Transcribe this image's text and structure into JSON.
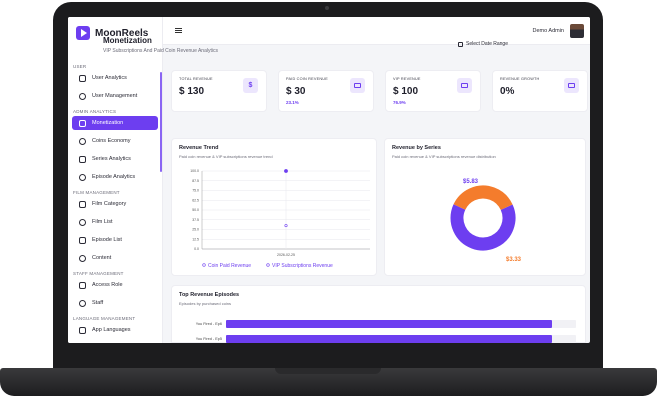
{
  "app": {
    "name": "MoonReels"
  },
  "sidebar": {
    "sections": [
      {
        "label": "USER",
        "items": [
          {
            "label": "User Analytics",
            "icon": "user-analytics-icon"
          },
          {
            "label": "User Management",
            "icon": "user-management-icon"
          }
        ]
      },
      {
        "label": "ADMIN ANALYTICS",
        "items": [
          {
            "label": "Monetization",
            "icon": "monetization-icon",
            "active": true
          },
          {
            "label": "Coins Economy",
            "icon": "coins-icon"
          },
          {
            "label": "Series Analytics",
            "icon": "series-icon"
          },
          {
            "label": "Episode Analytics",
            "icon": "episode-icon"
          }
        ]
      },
      {
        "label": "FILM MANAGEMENT",
        "items": [
          {
            "label": "Film Category",
            "icon": "film-category-icon"
          },
          {
            "label": "Film List",
            "icon": "film-list-icon"
          },
          {
            "label": "Episode List",
            "icon": "episode-list-icon"
          },
          {
            "label": "Content",
            "icon": "content-icon"
          }
        ]
      },
      {
        "label": "STAFF MANAGEMENT",
        "items": [
          {
            "label": "Access Role",
            "icon": "access-role-icon"
          },
          {
            "label": "Staff",
            "icon": "staff-icon"
          }
        ]
      },
      {
        "label": "LANGUAGE MANAGEMENT",
        "items": [
          {
            "label": "App Languages",
            "icon": "language-icon"
          }
        ]
      }
    ]
  },
  "header": {
    "user_name": "Demo Admin"
  },
  "page": {
    "title": "Monetization",
    "subtitle": "VIP Subscriptions And Paid Coin Revenue Analytics",
    "date_range_label": "Select Date Range"
  },
  "stats": [
    {
      "label": "TOTAL REVENUE",
      "value": "$ 130",
      "change": "",
      "icon": "dollar-icon",
      "glyph": "$"
    },
    {
      "label": "PAID COIN REVENUE",
      "value": "$ 30",
      "change": "23.1%",
      "icon": "coins-icon",
      "glyph": ""
    },
    {
      "label": "VIP REVENUE",
      "value": "$ 100",
      "change": "76.9%",
      "icon": "card-icon",
      "glyph": ""
    },
    {
      "label": "REVENUE GROWTH",
      "value": "0%",
      "change": "",
      "icon": "trend-up-icon",
      "glyph": ""
    }
  ],
  "trend_panel": {
    "title": "Revenue Trend",
    "subtitle": "Paid coin revenue & VIP subscriptions revenue trend"
  },
  "series_panel": {
    "title": "Revenue by Series",
    "subtitle": "Paid coin revenue & VIP subscriptions revenue distribution"
  },
  "episodes_panel": {
    "title": "Top Revenue Episodes",
    "subtitle": "Episodes by purchased coins"
  },
  "chart_data": [
    {
      "type": "line",
      "x": [
        "2026-02-25"
      ],
      "series": [
        {
          "name": "Coin Paid Revenue",
          "values": [
            30
          ]
        },
        {
          "name": "VIP Subscriptions Revenue",
          "values": [
            100
          ]
        }
      ],
      "yticks": [
        "0.0",
        "12.5",
        "25.0",
        "37.5",
        "50.0",
        "62.5",
        "75.0",
        "87.5",
        "100.0"
      ],
      "ylim": [
        0,
        100
      ],
      "grid": true,
      "legend": "bottom",
      "colors": [
        "#6d3ef0",
        "#6d3ef0"
      ]
    },
    {
      "type": "pie",
      "donut": true,
      "slices": [
        {
          "label": "$5.83",
          "value": 5.83,
          "color": "#6d3ef0"
        },
        {
          "label": "$3.33",
          "value": 3.33,
          "color": "#f47c2c"
        }
      ]
    },
    {
      "type": "bar",
      "orientation": "horizontal",
      "categories": [
        "You Fired - Ep6",
        "You Fired - Ep5"
      ],
      "values": [
        0.93,
        0.93
      ],
      "color": "#6d3ef0"
    }
  ]
}
